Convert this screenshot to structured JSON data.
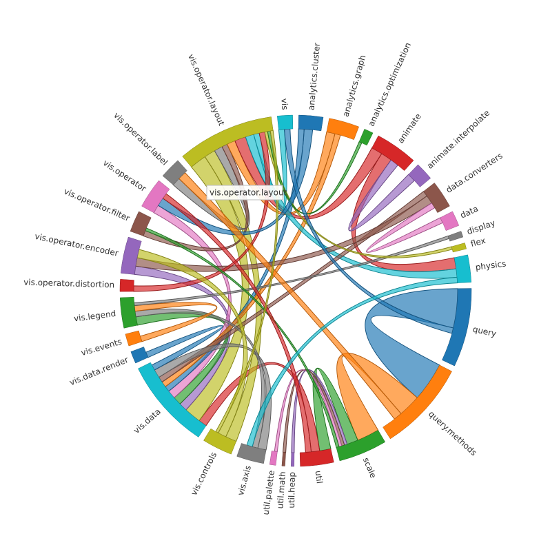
{
  "chart_data": {
    "type": "chord",
    "groups": [
      "analytics.cluster",
      "analytics.graph",
      "analytics.optimization",
      "animate",
      "animate.interpolate",
      "data.converters",
      "data",
      "display",
      "flex",
      "physics",
      "query",
      "query.methods",
      "scale",
      "util",
      "util.heap",
      "util.math",
      "util.palette",
      "vis.axis",
      "vis.controls",
      "vis.data",
      "vis.data.render",
      "vis.events",
      "vis.legend",
      "vis.operator.distortion",
      "vis.operator.encoder",
      "vis.operator.filter",
      "vis.operator",
      "vis.operator.label",
      "vis.operator.layout",
      "vis"
    ],
    "values": [
      8,
      10,
      3,
      14,
      6,
      9,
      5,
      2,
      2,
      9,
      26,
      30,
      16,
      11,
      1,
      1,
      2,
      9,
      10,
      30,
      4,
      4,
      10,
      4,
      12,
      7,
      10,
      7,
      32,
      5
    ],
    "colors": [
      "#1f77b4",
      "#ff7f0e",
      "#2ca02c",
      "#d62728",
      "#9467bd",
      "#8c564b",
      "#e377c2",
      "#7f7f7f",
      "#bcbd22",
      "#17becf",
      "#1f77b4",
      "#ff7f0e",
      "#2ca02c",
      "#d62728",
      "#9467bd",
      "#8c564b",
      "#e377c2",
      "#7f7f7f",
      "#bcbd22",
      "#17becf",
      "#1f77b4",
      "#ff7f0e",
      "#2ca02c",
      "#d62728",
      "#9467bd",
      "#8c564b",
      "#e377c2",
      "#7f7f7f",
      "#bcbd22",
      "#17becf"
    ],
    "chords": [
      {
        "source": 10,
        "target": 11,
        "value": 14
      },
      {
        "source": 11,
        "target": 12,
        "value": 8
      },
      {
        "source": 12,
        "target": 13,
        "value": 4
      },
      {
        "source": 13,
        "target": 19,
        "value": 3
      },
      {
        "source": 28,
        "target": 19,
        "value": 6
      },
      {
        "source": 18,
        "target": 28,
        "value": 4
      },
      {
        "source": 24,
        "target": 19,
        "value": 3
      },
      {
        "source": 22,
        "target": 19,
        "value": 3
      },
      {
        "source": 26,
        "target": 19,
        "value": 3
      },
      {
        "source": 27,
        "target": 28,
        "value": 3
      },
      {
        "source": 25,
        "target": 28,
        "value": 2
      },
      {
        "source": 0,
        "target": 19,
        "value": 2
      },
      {
        "source": 1,
        "target": 28,
        "value": 3
      },
      {
        "source": 1,
        "target": 19,
        "value": 2
      },
      {
        "source": 3,
        "target": 28,
        "value": 4
      },
      {
        "source": 3,
        "target": 9,
        "value": 4
      },
      {
        "source": 4,
        "target": 3,
        "value": 3
      },
      {
        "source": 9,
        "target": 28,
        "value": 3
      },
      {
        "source": 5,
        "target": 19,
        "value": 2
      },
      {
        "source": 5,
        "target": 24,
        "value": 3
      },
      {
        "source": 17,
        "target": 19,
        "value": 3
      },
      {
        "source": 17,
        "target": 22,
        "value": 2
      },
      {
        "source": 29,
        "target": 28,
        "value": 2
      },
      {
        "source": 23,
        "target": 28,
        "value": 2
      },
      {
        "source": 21,
        "target": 22,
        "value": 2
      },
      {
        "source": 20,
        "target": 19,
        "value": 2
      },
      {
        "source": 6,
        "target": 5,
        "value": 2
      },
      {
        "source": 7,
        "target": 22,
        "value": 1
      },
      {
        "source": 8,
        "target": 28,
        "value": 1
      },
      {
        "source": 2,
        "target": 28,
        "value": 1
      },
      {
        "source": 14,
        "target": 12,
        "value": 1
      },
      {
        "source": 15,
        "target": 12,
        "value": 1
      },
      {
        "source": 16,
        "target": 12,
        "value": 1
      },
      {
        "source": 0,
        "target": 26,
        "value": 3
      },
      {
        "source": 18,
        "target": 24,
        "value": 3
      },
      {
        "source": 10,
        "target": 29,
        "value": 2
      },
      {
        "source": 11,
        "target": 27,
        "value": 3
      },
      {
        "source": 12,
        "target": 25,
        "value": 1
      },
      {
        "source": 13,
        "target": 26,
        "value": 2
      },
      {
        "source": 9,
        "target": 17,
        "value": 2
      },
      {
        "source": 28,
        "target": 18,
        "value": 1
      }
    ],
    "tooltip": "vis.operator.layout"
  }
}
